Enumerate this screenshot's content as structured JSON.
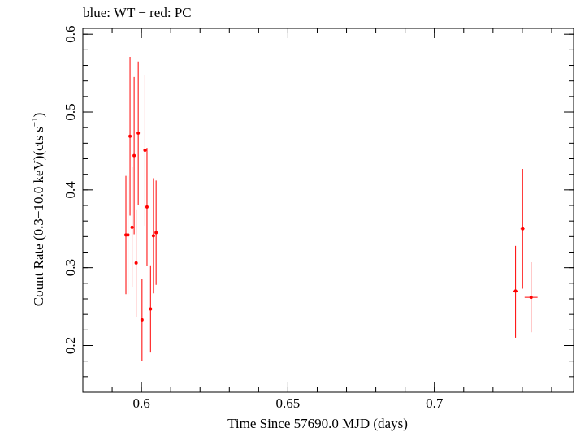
{
  "chart_data": {
    "type": "scatter",
    "title": "blue: WT − red: PC",
    "xlabel": "Time Since 57690.0 MJD (days)",
    "ylabel_main": "Count Rate (0.3−10.0 keV)(cts s",
    "ylabel_sup": "−1",
    "ylabel_close": ")",
    "xlim": [
      0.58,
      0.7475
    ],
    "ylim": [
      0.14,
      0.6075
    ],
    "x_ticks": [
      {
        "value": 0.6,
        "label": "0.6"
      },
      {
        "value": 0.65,
        "label": "0.65"
      },
      {
        "value": 0.7,
        "label": "0.7"
      }
    ],
    "y_ticks": [
      {
        "value": 0.2,
        "label": "0.2"
      },
      {
        "value": 0.3,
        "label": "0.3"
      },
      {
        "value": 0.4,
        "label": "0.4"
      },
      {
        "value": 0.5,
        "label": "0.5"
      },
      {
        "value": 0.6,
        "label": "0.6"
      }
    ],
    "x_minor_step": 0.01,
    "y_minor_step": 0.02,
    "series": [
      {
        "name": "PC",
        "color": "#ff0000",
        "points": [
          {
            "x": 0.5947,
            "y": 0.342,
            "yerr_lo": 0.076,
            "yerr_hi": 0.076,
            "xerr": 0.0004
          },
          {
            "x": 0.5954,
            "y": 0.342,
            "yerr_lo": 0.076,
            "yerr_hi": 0.076,
            "xerr": 0.0004
          },
          {
            "x": 0.5961,
            "y": 0.469,
            "yerr_lo": 0.102,
            "yerr_hi": 0.102,
            "xerr": 0.0004
          },
          {
            "x": 0.5968,
            "y": 0.352,
            "yerr_lo": 0.077,
            "yerr_hi": 0.077,
            "xerr": 0.0004
          },
          {
            "x": 0.5975,
            "y": 0.444,
            "yerr_lo": 0.101,
            "yerr_hi": 0.101,
            "xerr": 0.0004
          },
          {
            "x": 0.5982,
            "y": 0.306,
            "yerr_lo": 0.069,
            "yerr_hi": 0.069,
            "xerr": 0.0004
          },
          {
            "x": 0.5989,
            "y": 0.473,
            "yerr_lo": 0.092,
            "yerr_hi": 0.092,
            "xerr": 0.0004
          },
          {
            "x": 0.6002,
            "y": 0.233,
            "yerr_lo": 0.053,
            "yerr_hi": 0.053,
            "xerr": 0.0004
          },
          {
            "x": 0.6012,
            "y": 0.451,
            "yerr_lo": 0.097,
            "yerr_hi": 0.097,
            "xerr": 0.0004
          },
          {
            "x": 0.6019,
            "y": 0.378,
            "yerr_lo": 0.076,
            "yerr_hi": 0.076,
            "xerr": 0.0004
          },
          {
            "x": 0.6031,
            "y": 0.247,
            "yerr_lo": 0.056,
            "yerr_hi": 0.056,
            "xerr": 0.0004
          },
          {
            "x": 0.6041,
            "y": 0.341,
            "yerr_lo": 0.074,
            "yerr_hi": 0.074,
            "xerr": 0.0004
          },
          {
            "x": 0.605,
            "y": 0.345,
            "yerr_lo": 0.067,
            "yerr_hi": 0.067,
            "xerr": 0.0004
          },
          {
            "x": 0.7277,
            "y": 0.27,
            "yerr_lo": 0.06,
            "yerr_hi": 0.058,
            "xerr": 0.0008
          },
          {
            "x": 0.7301,
            "y": 0.35,
            "yerr_lo": 0.077,
            "yerr_hi": 0.077,
            "xerr": 0.0007
          },
          {
            "x": 0.733,
            "y": 0.262,
            "yerr_lo": 0.045,
            "yerr_hi": 0.045,
            "xerr": 0.0022
          }
        ]
      }
    ]
  }
}
